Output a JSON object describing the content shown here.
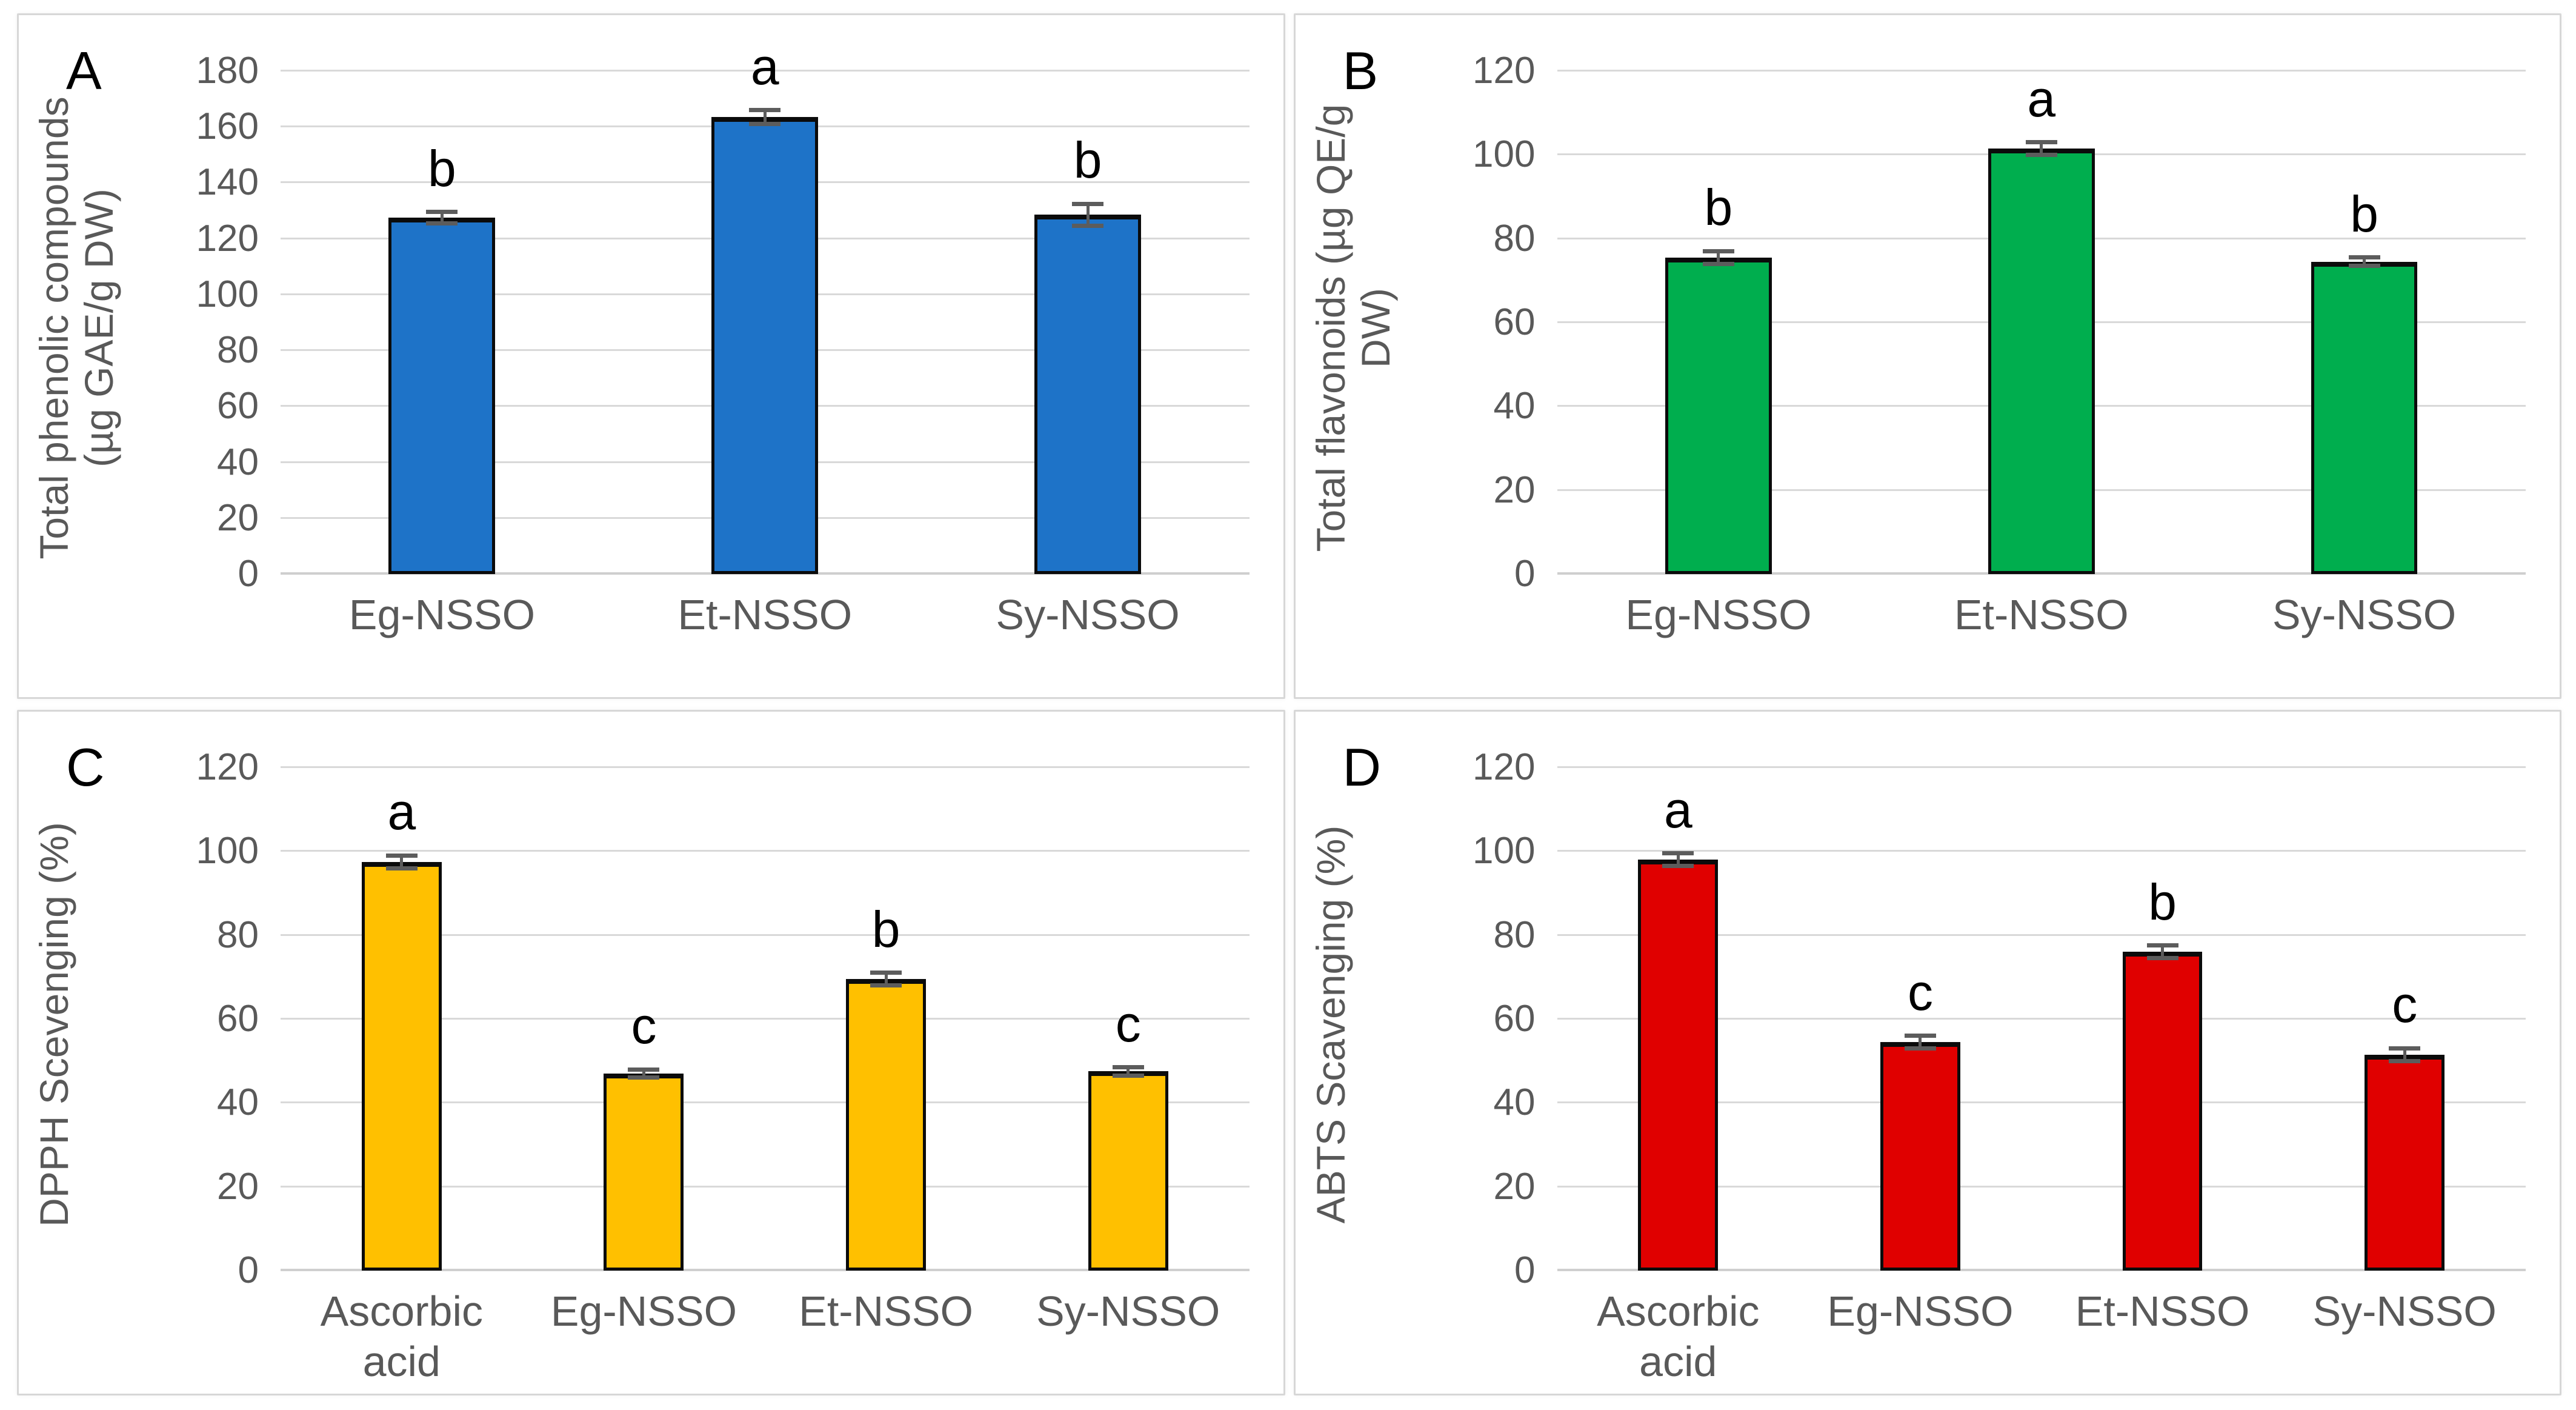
{
  "figure": {
    "background": "#ffffff",
    "panel_border_color": "#d7d7d7",
    "text_color": "#595959",
    "grid_color": "#d9d9d9",
    "bar_outline_color": "#0b0b0b",
    "error_bar_color": "#5c5c5c",
    "sig_letter_color": "#000000"
  },
  "chart_data": [
    {
      "type": "bar",
      "panel_label": "A",
      "ylabel_lines": [
        "Total phenolic compounds",
        "(µg GAE/g DW)"
      ],
      "ylim": [
        0,
        180
      ],
      "ytick_step": 20,
      "grid": true,
      "legend_position": "none",
      "bar_color": "#1e73c8",
      "categories": [
        "Eg-NSSO",
        "Et-NSSO",
        "Sy-NSSO"
      ],
      "values": [
        127.5,
        163.5,
        128.5
      ],
      "errors": [
        2,
        2.5,
        4
      ],
      "sig_letters": [
        "b",
        "a",
        "b"
      ]
    },
    {
      "type": "bar",
      "panel_label": "B",
      "ylabel_lines": [
        "Total flavonoids (µg QE/g DW)"
      ],
      "ylim": [
        0,
        120
      ],
      "ytick_step": 20,
      "grid": true,
      "legend_position": "none",
      "bar_color": "#00ae4e",
      "categories": [
        "Eg-NSSO",
        "Et-NSSO",
        "Sy-NSSO"
      ],
      "values": [
        75.5,
        101.5,
        74.5
      ],
      "errors": [
        1.5,
        1.5,
        1
      ],
      "sig_letters": [
        "b",
        "a",
        "b"
      ]
    },
    {
      "type": "bar",
      "panel_label": "C",
      "ylabel_lines": [
        "DPPH Scevenging (%)"
      ],
      "ylim": [
        0,
        120
      ],
      "ytick_step": 20,
      "grid": true,
      "legend_position": "none",
      "bar_color": "#ffc000",
      "categories": [
        "Ascorbic acid",
        "Eg-NSSO",
        "Et-NSSO",
        "Sy-NSSO"
      ],
      "values": [
        97.5,
        47,
        69.5,
        47.5
      ],
      "errors": [
        1.5,
        1,
        1.5,
        1
      ],
      "sig_letters": [
        "a",
        "c",
        "b",
        "c"
      ]
    },
    {
      "type": "bar",
      "panel_label": "D",
      "ylabel_lines": [
        "ABTS Scavenging (%)"
      ],
      "ylim": [
        0,
        120
      ],
      "ytick_step": 20,
      "grid": true,
      "legend_position": "none",
      "bar_color": "#e00000",
      "categories": [
        "Ascorbic acid",
        "Eg-NSSO",
        "Et-NSSO",
        "Sy-NSSO"
      ],
      "values": [
        98,
        54.5,
        76,
        51.5
      ],
      "errors": [
        1.5,
        1.5,
        1.5,
        1.5
      ],
      "sig_letters": [
        "a",
        "c",
        "b",
        "c"
      ]
    }
  ]
}
